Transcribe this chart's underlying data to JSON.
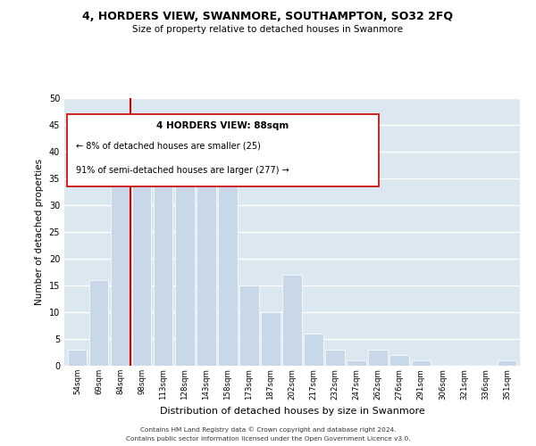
{
  "title": "4, HORDERS VIEW, SWANMORE, SOUTHAMPTON, SO32 2FQ",
  "subtitle": "Size of property relative to detached houses in Swanmore",
  "xlabel": "Distribution of detached houses by size in Swanmore",
  "ylabel": "Number of detached properties",
  "bar_color": "#c8d8e8",
  "bar_edge_color": "#ffffff",
  "background_color": "#ffffff",
  "axes_bg_color": "#dce8f0",
  "grid_color": "#ffffff",
  "annotation_box_color": "#ffffff",
  "annotation_box_edge": "#cc0000",
  "marker_line_color": "#cc0000",
  "annotation_title": "4 HORDERS VIEW: 88sqm",
  "annotation_line1": "← 8% of detached houses are smaller (25)",
  "annotation_line2": "91% of semi-detached houses are larger (277) →",
  "footnote1": "Contains HM Land Registry data © Crown copyright and database right 2024.",
  "footnote2": "Contains public sector information licensed under the Open Government Licence v3.0.",
  "categories": [
    "54sqm",
    "69sqm",
    "84sqm",
    "98sqm",
    "113sqm",
    "128sqm",
    "143sqm",
    "158sqm",
    "173sqm",
    "187sqm",
    "202sqm",
    "217sqm",
    "232sqm",
    "247sqm",
    "262sqm",
    "276sqm",
    "291sqm",
    "306sqm",
    "321sqm",
    "336sqm",
    "351sqm"
  ],
  "values": [
    3,
    16,
    35,
    37,
    39,
    41,
    38,
    39,
    15,
    10,
    17,
    6,
    3,
    1,
    3,
    2,
    1,
    0,
    0,
    0,
    1
  ],
  "ylim": [
    0,
    50
  ],
  "yticks": [
    0,
    5,
    10,
    15,
    20,
    25,
    30,
    35,
    40,
    45,
    50
  ]
}
